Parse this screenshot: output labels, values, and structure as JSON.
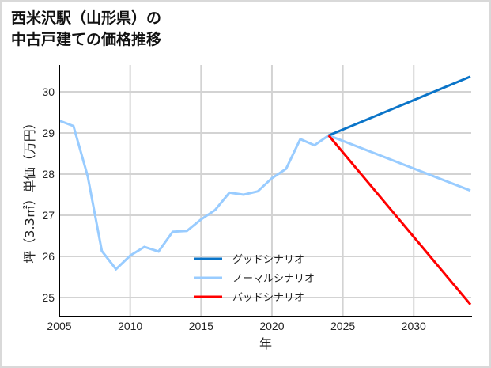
{
  "title": {
    "line1": "西米沢駅（山形県）の",
    "line2": "中古戸建ての価格推移"
  },
  "chart_data": {
    "type": "line",
    "title": "西米沢駅（山形県）の中古戸建ての価格推移",
    "xlabel": "年",
    "ylabel": "坪（3.3㎡）単価（万円）",
    "xlim": [
      2005,
      2034
    ],
    "ylim": [
      24.55,
      30.65
    ],
    "x_ticks": [
      2005,
      2010,
      2015,
      2020,
      2025,
      2030
    ],
    "y_ticks": [
      25,
      26,
      27,
      28,
      29,
      30
    ],
    "grid": true,
    "legend_position": "lower center",
    "series": [
      {
        "name": "グッドシナリオ",
        "color": "#0a74c8",
        "x": [
          2024,
          2034
        ],
        "values": [
          28.94,
          30.37
        ]
      },
      {
        "name": "ノーマルシナリオ",
        "color": "#99ccff",
        "x": [
          2005,
          2006,
          2007,
          2008,
          2009,
          2010,
          2011,
          2012,
          2013,
          2014,
          2015,
          2016,
          2017,
          2018,
          2019,
          2020,
          2021,
          2022,
          2023,
          2024,
          2034
        ],
        "values": [
          29.3,
          29.17,
          27.95,
          26.13,
          25.69,
          26.02,
          26.23,
          26.12,
          26.6,
          26.62,
          26.9,
          27.13,
          27.55,
          27.5,
          27.58,
          27.9,
          28.13,
          28.85,
          28.7,
          28.94,
          27.6
        ]
      },
      {
        "name": "バッドシナリオ",
        "color": "#ff0000",
        "x": [
          2024,
          2034
        ],
        "values": [
          28.94,
          24.83
        ]
      }
    ]
  },
  "axes": {
    "x_tick_labels": [
      "2005",
      "2010",
      "2015",
      "2020",
      "2025",
      "2030"
    ],
    "y_tick_labels": [
      "25",
      "26",
      "27",
      "28",
      "29",
      "30"
    ],
    "xlabel": "年",
    "ylabel": "坪（3.3㎡）単価（万円）"
  },
  "legend": [
    {
      "label": "グッドシナリオ",
      "color": "#0a74c8"
    },
    {
      "label": "ノーマルシナリオ",
      "color": "#99ccff"
    },
    {
      "label": "バッドシナリオ",
      "color": "#ff0000"
    }
  ]
}
